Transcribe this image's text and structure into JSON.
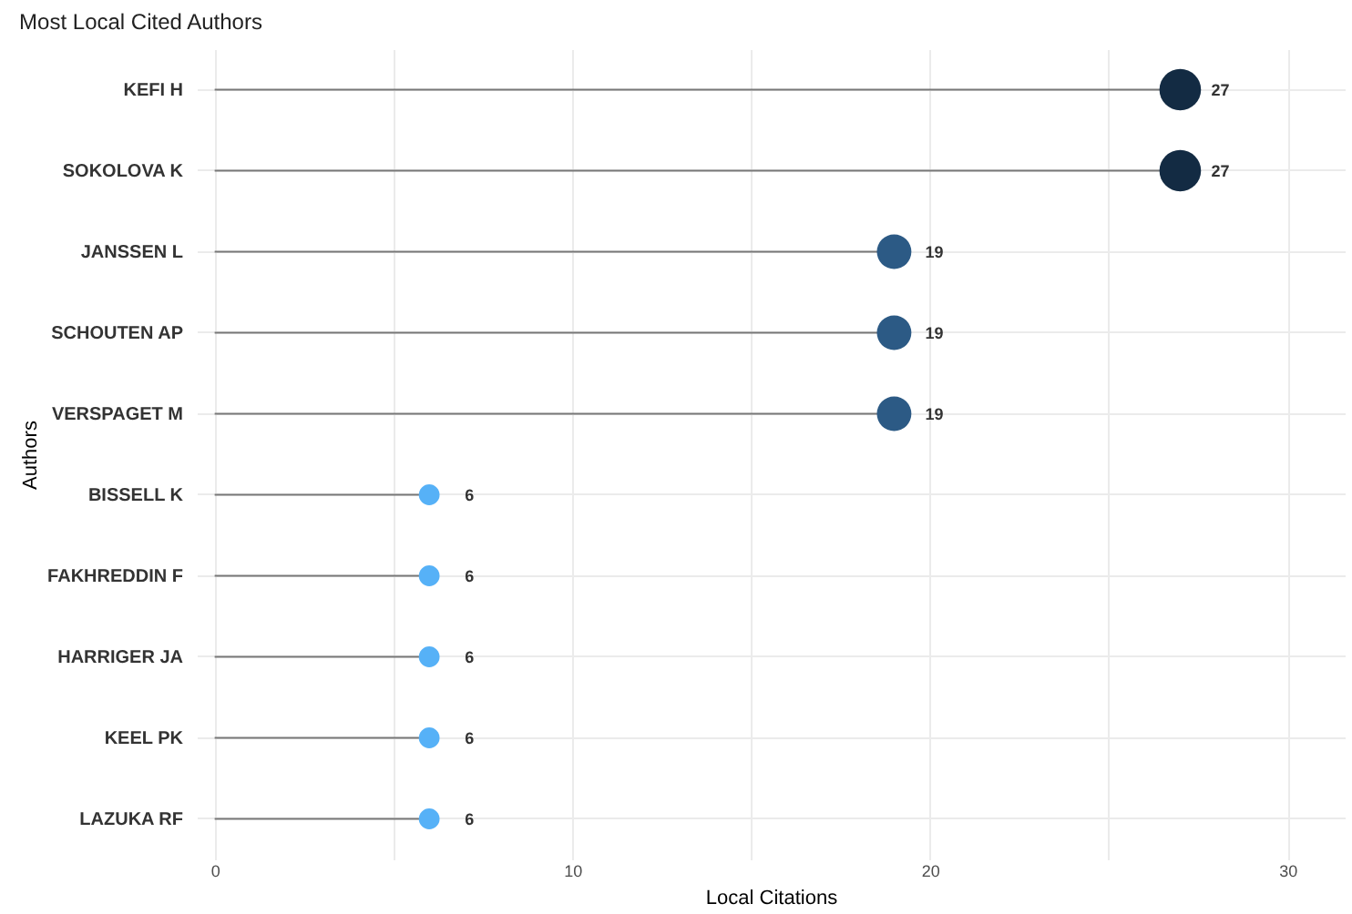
{
  "chart_data": {
    "type": "lollipop",
    "title": "Most Local Cited Authors",
    "xlabel": "Local Citations",
    "ylabel": "Authors",
    "orientation": "horizontal",
    "categories": [
      "KEFI H",
      "SOKOLOVA K",
      "JANSSEN L",
      "SCHOUTEN AP",
      "VERSPAGET M",
      "BISSELL K",
      "FAKHREDDIN F",
      "HARRIGER JA",
      "KEEL PK",
      "LAZUKA RF"
    ],
    "values": [
      27,
      27,
      19,
      19,
      19,
      6,
      6,
      6,
      6,
      6
    ],
    "sizes": [
      1,
      1,
      0.69,
      0.69,
      0.69,
      0.25,
      0.25,
      0.25,
      0.25,
      0.25
    ],
    "colors": [
      "#132b43",
      "#132b43",
      "#2c5a85",
      "#2c5a85",
      "#2c5a85",
      "#56b1f7",
      "#56b1f7",
      "#56b1f7",
      "#56b1f7",
      "#56b1f7"
    ],
    "xlim": [
      -0.5,
      31.6
    ],
    "xticks": [
      0,
      {
        "value": 5,
        "label": null
      },
      10,
      {
        "value": 15,
        "label": null
      },
      20,
      {
        "value": 25,
        "label": null
      },
      30
    ],
    "grid": true,
    "data_labels": true,
    "legend": false
  }
}
